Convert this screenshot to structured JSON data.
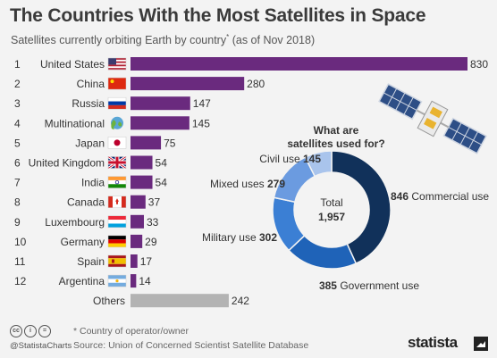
{
  "title": "The Countries With the Most Satellites in Space",
  "subtitle": "Satellites currently orbiting Earth by country",
  "subtitle_mark": "*",
  "subtitle_date": "(as of Nov 2018)",
  "colors": {
    "bar": "#6a2a7e",
    "bar_others": "#b3b3b3",
    "donut": [
      "#11315a",
      "#1f63b8",
      "#3b7fd4",
      "#6b9be0",
      "#a9c4ec"
    ]
  },
  "chart_data": [
    {
      "type": "bar",
      "orientation": "horizontal",
      "ranks": [
        "1",
        "2",
        "3",
        "4",
        "5",
        "6",
        "7",
        "8",
        "9",
        "10",
        "11",
        "12",
        ""
      ],
      "categories": [
        "United States",
        "China",
        "Russia",
        "Multinational",
        "Japan",
        "United Kingdom",
        "India",
        "Canada",
        "Luxembourg",
        "Germany",
        "Spain",
        "Argentina",
        "Others"
      ],
      "flags": [
        "us",
        "cn",
        "ru",
        "globe",
        "jp",
        "gb",
        "in",
        "ca",
        "lu",
        "de",
        "es",
        "ar",
        ""
      ],
      "values": [
        830,
        280,
        147,
        145,
        75,
        54,
        54,
        37,
        33,
        29,
        17,
        14,
        242
      ],
      "xlim": [
        0,
        830
      ]
    },
    {
      "type": "pie",
      "donut": true,
      "title": "What are satellites used for?",
      "center_label": "Total",
      "center_value": "1,957",
      "total": 1957,
      "slices": [
        {
          "label": "Commercial use",
          "value": 846
        },
        {
          "label": "Government use",
          "value": 385
        },
        {
          "label": "Military use",
          "value": 302
        },
        {
          "label": "Mixed uses",
          "value": 279
        },
        {
          "label": "Civil use",
          "value": 145
        }
      ]
    }
  ],
  "footer": {
    "note": "* Country of operator/owner",
    "source": "Source: Union of Concerned Scientist Satellite Database",
    "handle": "@StatistaCharts",
    "brand": "statista",
    "cc_icons": [
      "cc",
      "i",
      "="
    ]
  }
}
